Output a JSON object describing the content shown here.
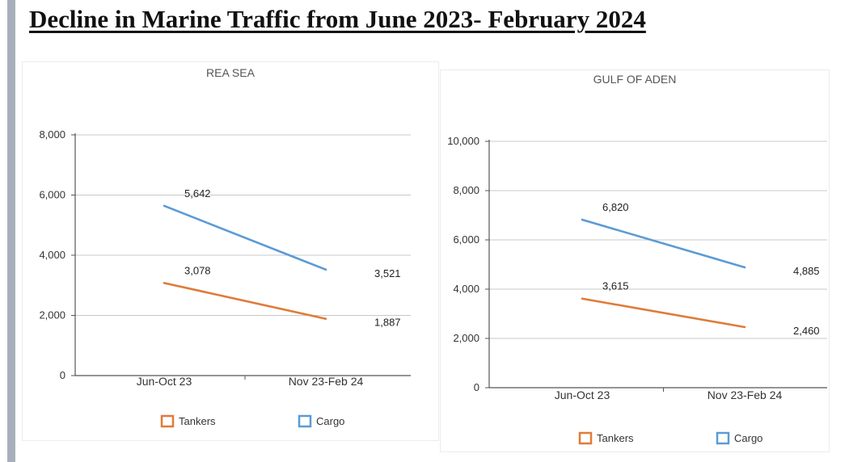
{
  "page": {
    "title": "Decline in Marine Traffic from June 2023- February 2024"
  },
  "colors": {
    "tankers": "#e07b39",
    "cargo": "#5b9bd5",
    "grid": "#c8c8c8",
    "axis": "#555555",
    "text": "#222222"
  },
  "chart_data": [
    {
      "type": "line",
      "title": "REA SEA",
      "categories": [
        "Jun-Oct 23",
        "Nov 23-Feb 24"
      ],
      "series": [
        {
          "name": "Tankers",
          "values": [
            3078,
            1887
          ],
          "labels": [
            "3,078",
            "1,887"
          ],
          "color": "#e07b39"
        },
        {
          "name": "Cargo",
          "values": [
            5642,
            3521
          ],
          "labels": [
            "5,642",
            "3,521"
          ],
          "color": "#5b9bd5"
        }
      ],
      "ylim": [
        0,
        8000
      ],
      "yticks": [
        0,
        2000,
        4000,
        6000,
        8000
      ],
      "ytick_labels": [
        "0",
        "2,000",
        "4,000",
        "6,000",
        "8,000"
      ],
      "grid": true,
      "legend": "bottom"
    },
    {
      "type": "line",
      "title": "GULF OF ADEN",
      "categories": [
        "Jun-Oct 23",
        "Nov 23-Feb 24"
      ],
      "series": [
        {
          "name": "Tankers",
          "values": [
            3615,
            2460
          ],
          "labels": [
            "3,615",
            "2,460"
          ],
          "color": "#e07b39"
        },
        {
          "name": "Cargo",
          "values": [
            6820,
            4885
          ],
          "labels": [
            "6,820",
            "4,885"
          ],
          "color": "#5b9bd5"
        }
      ],
      "ylim": [
        0,
        10000
      ],
      "yticks": [
        0,
        2000,
        4000,
        6000,
        8000,
        10000
      ],
      "ytick_labels": [
        "0",
        "2,000",
        "4,000",
        "6,000",
        "8,000",
        "10,000"
      ],
      "grid": true,
      "legend": "bottom"
    }
  ]
}
